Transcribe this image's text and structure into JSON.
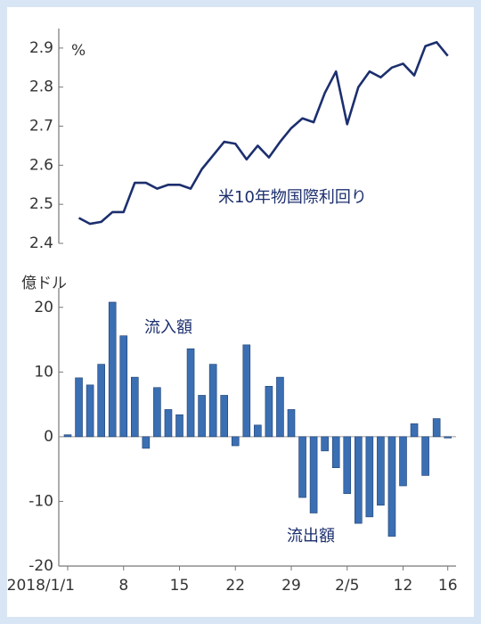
{
  "chart_data": [
    {
      "type": "line",
      "unit": "%",
      "annotation": "米10年物国際利回り",
      "color": "#1c2f6e",
      "values": [
        null,
        2.465,
        2.45,
        2.455,
        2.48,
        2.48,
        2.555,
        2.555,
        2.54,
        2.55,
        2.55,
        2.54,
        2.59,
        2.625,
        2.66,
        2.655,
        2.615,
        2.65,
        2.62,
        2.66,
        2.695,
        2.72,
        2.71,
        2.785,
        2.84,
        2.705,
        2.8,
        2.84,
        2.825,
        2.85,
        2.86,
        2.83,
        2.905,
        2.915,
        2.88
      ],
      "ylim": [
        2.4,
        2.95
      ],
      "yticks": [
        2.4,
        2.5,
        2.6,
        2.7,
        2.8,
        2.9
      ]
    },
    {
      "type": "bar",
      "unit": "億ドル",
      "annotations": [
        "流入額",
        "流出額"
      ],
      "color": "#3b6fb3",
      "categories": [
        "2018/1/1",
        null,
        null,
        null,
        null,
        "8",
        null,
        null,
        null,
        null,
        "15",
        null,
        null,
        null,
        null,
        "22",
        null,
        null,
        null,
        null,
        "29",
        null,
        null,
        null,
        null,
        "2/5",
        null,
        null,
        null,
        null,
        "12",
        null,
        null,
        null,
        "16"
      ],
      "values": [
        0.3,
        9.1,
        8.0,
        11.2,
        20.8,
        15.6,
        9.2,
        -1.8,
        7.6,
        4.2,
        3.4,
        13.6,
        6.4,
        11.2,
        6.4,
        -1.4,
        14.2,
        1.8,
        7.8,
        9.2,
        4.2,
        -9.4,
        -11.8,
        -2.2,
        -4.8,
        -8.8,
        -13.4,
        -12.4,
        -10.6,
        -15.4,
        -7.6,
        2.0,
        -6.0,
        2.8,
        -0.2
      ],
      "ylim": [
        -20,
        23
      ],
      "yticks": [
        -20,
        -10,
        0,
        10,
        20
      ]
    }
  ]
}
